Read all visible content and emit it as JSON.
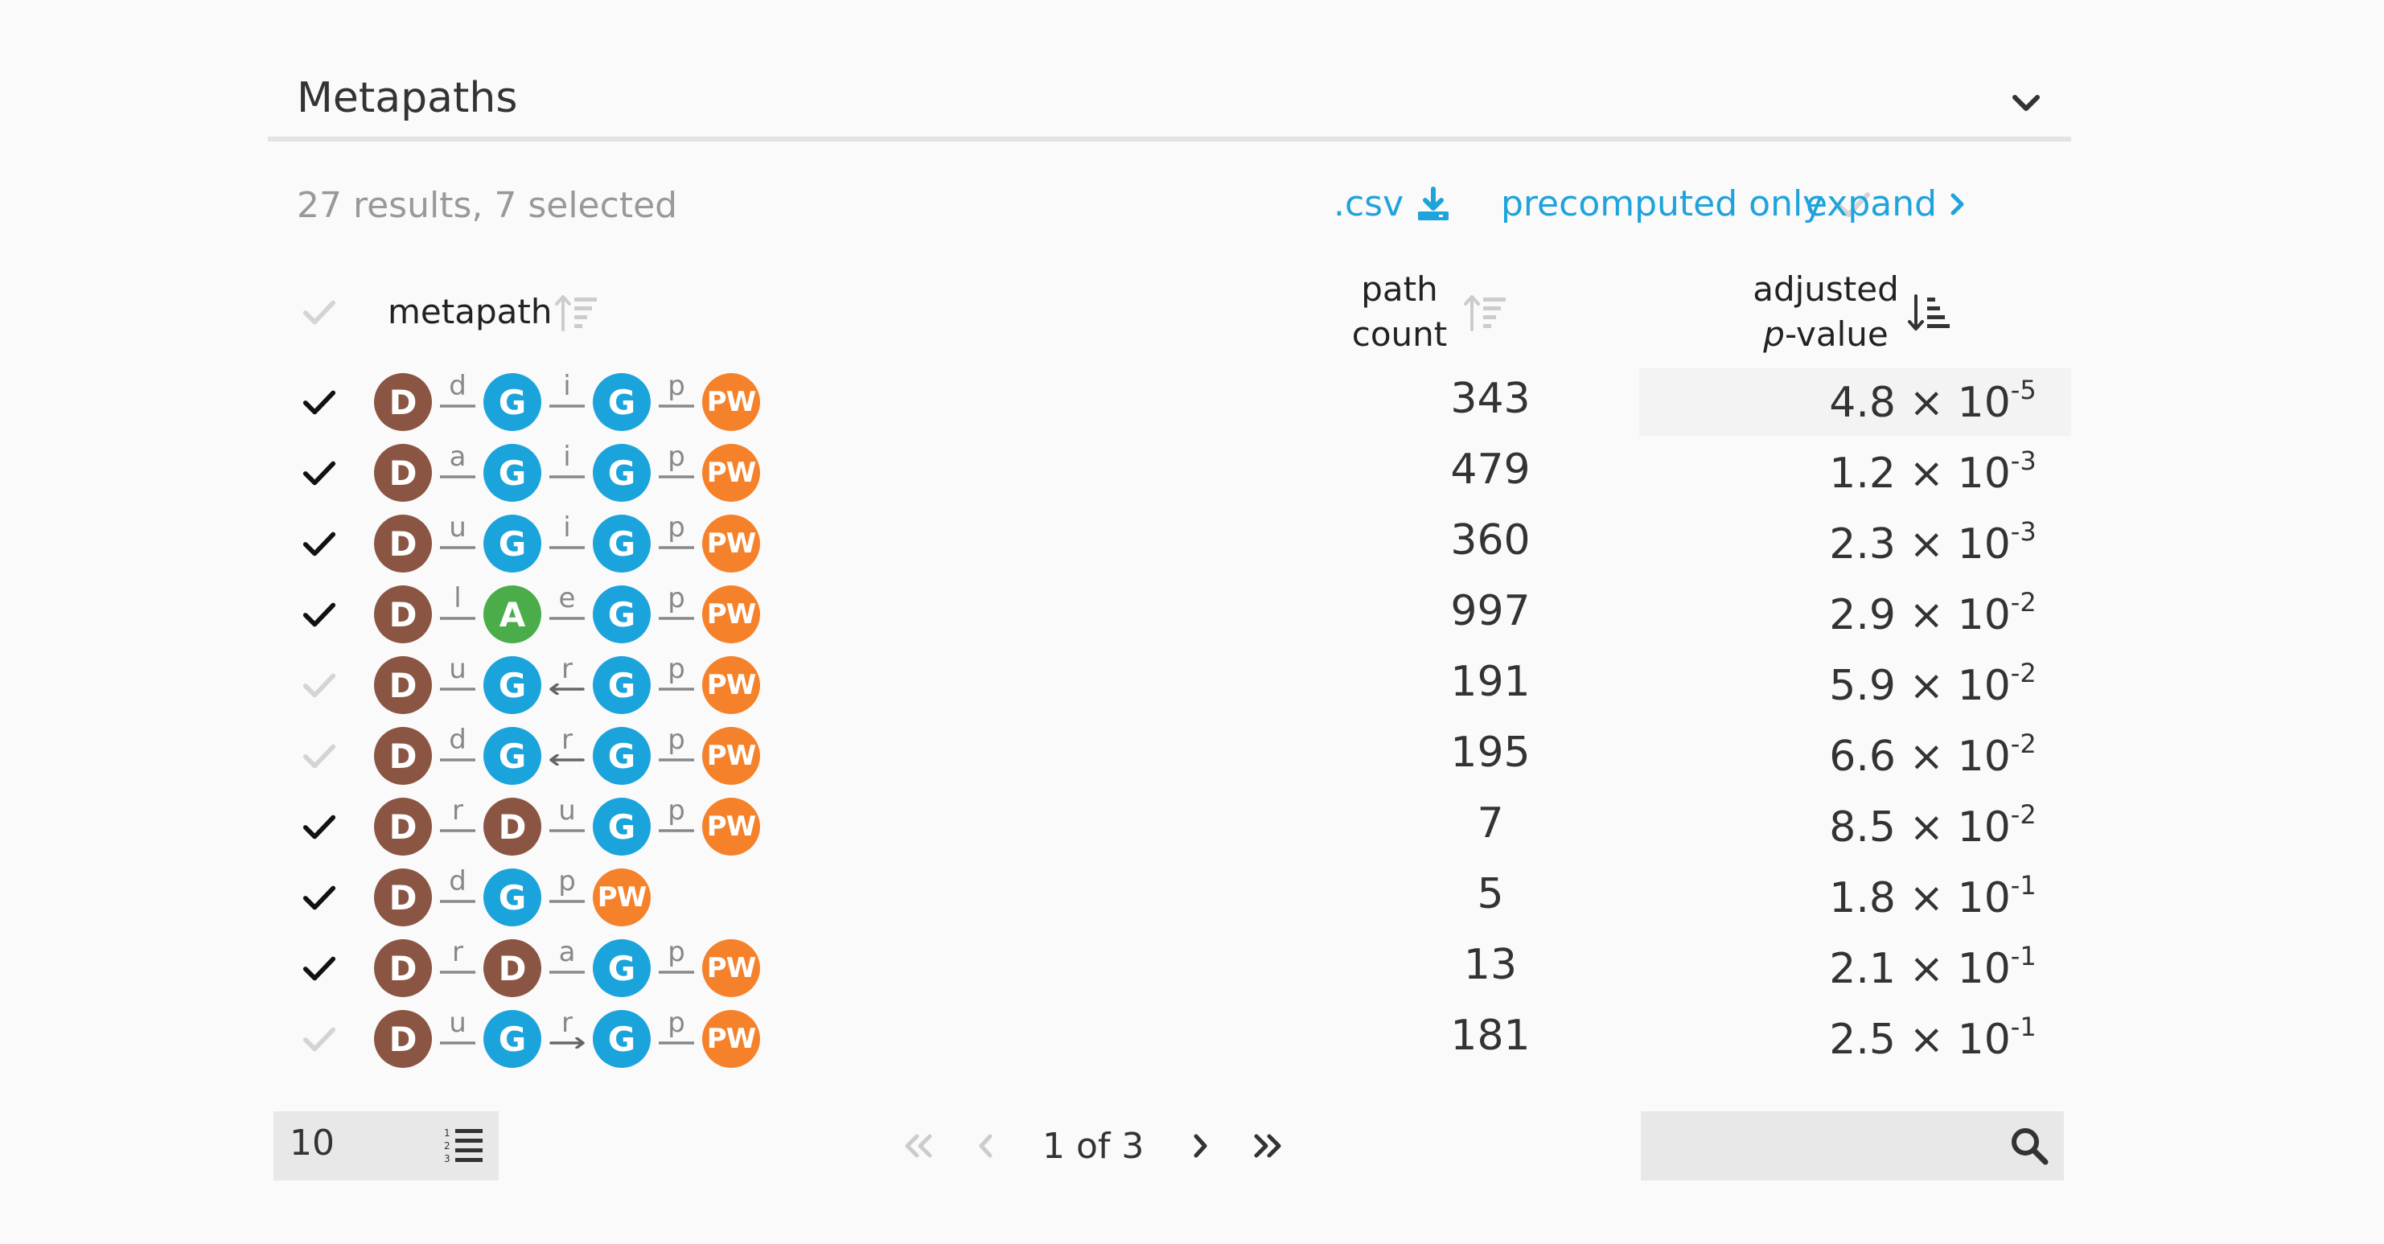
{
  "section": {
    "title": "Metapaths"
  },
  "toolbar": {
    "results_text": "27 results, 7 selected",
    "csv_label": ".csv",
    "precomputed_label": "precomputed only",
    "expand_label": "expand"
  },
  "table": {
    "headers": {
      "metapath": "metapath",
      "path_count_line1": "path",
      "path_count_line2": "count",
      "pvalue_line1": "adjusted",
      "pvalue_italic": "p",
      "pvalue_rest": "-value"
    },
    "rows": [
      {
        "selected": true,
        "path": [
          "D",
          "d",
          "G",
          "i",
          "G",
          "p",
          "PW"
        ],
        "arrows": [
          null,
          null,
          null
        ],
        "count": "343",
        "mantissa": "4.8 × 10",
        "exponent": "-5"
      },
      {
        "selected": true,
        "path": [
          "D",
          "a",
          "G",
          "i",
          "G",
          "p",
          "PW"
        ],
        "arrows": [
          null,
          null,
          null
        ],
        "count": "479",
        "mantissa": "1.2 × 10",
        "exponent": "-3"
      },
      {
        "selected": true,
        "path": [
          "D",
          "u",
          "G",
          "i",
          "G",
          "p",
          "PW"
        ],
        "arrows": [
          null,
          null,
          null
        ],
        "count": "360",
        "mantissa": "2.3 × 10",
        "exponent": "-3"
      },
      {
        "selected": true,
        "path": [
          "D",
          "l",
          "A",
          "e",
          "G",
          "p",
          "PW"
        ],
        "arrows": [
          null,
          null,
          null
        ],
        "count": "997",
        "mantissa": "2.9 × 10",
        "exponent": "-2"
      },
      {
        "selected": false,
        "path": [
          "D",
          "u",
          "G",
          "r",
          "G",
          "p",
          "PW"
        ],
        "arrows": [
          null,
          "left",
          null
        ],
        "count": "191",
        "mantissa": "5.9 × 10",
        "exponent": "-2"
      },
      {
        "selected": false,
        "path": [
          "D",
          "d",
          "G",
          "r",
          "G",
          "p",
          "PW"
        ],
        "arrows": [
          null,
          "left",
          null
        ],
        "count": "195",
        "mantissa": "6.6 × 10",
        "exponent": "-2"
      },
      {
        "selected": true,
        "path": [
          "D",
          "r",
          "D",
          "u",
          "G",
          "p",
          "PW"
        ],
        "arrows": [
          null,
          null,
          null
        ],
        "count": "7",
        "mantissa": "8.5 × 10",
        "exponent": "-2"
      },
      {
        "selected": true,
        "path": [
          "D",
          "d",
          "G",
          "p",
          "PW"
        ],
        "arrows": [
          null,
          null
        ],
        "count": "5",
        "mantissa": "1.8 × 10",
        "exponent": "-1"
      },
      {
        "selected": true,
        "path": [
          "D",
          "r",
          "D",
          "a",
          "G",
          "p",
          "PW"
        ],
        "arrows": [
          null,
          null,
          null
        ],
        "count": "13",
        "mantissa": "2.1 × 10",
        "exponent": "-1"
      },
      {
        "selected": false,
        "path": [
          "D",
          "u",
          "G",
          "r",
          "G",
          "p",
          "PW"
        ],
        "arrows": [
          null,
          "right",
          null
        ],
        "count": "181",
        "mantissa": "2.5 × 10",
        "exponent": "-1"
      }
    ]
  },
  "node_colors": {
    "D": "#8b5543",
    "G": "#1ba4dc",
    "A": "#4aad4a",
    "PW": "#f5822a"
  },
  "footer": {
    "page_size": "10",
    "pagination": "1 of 3",
    "search_placeholder": ""
  }
}
